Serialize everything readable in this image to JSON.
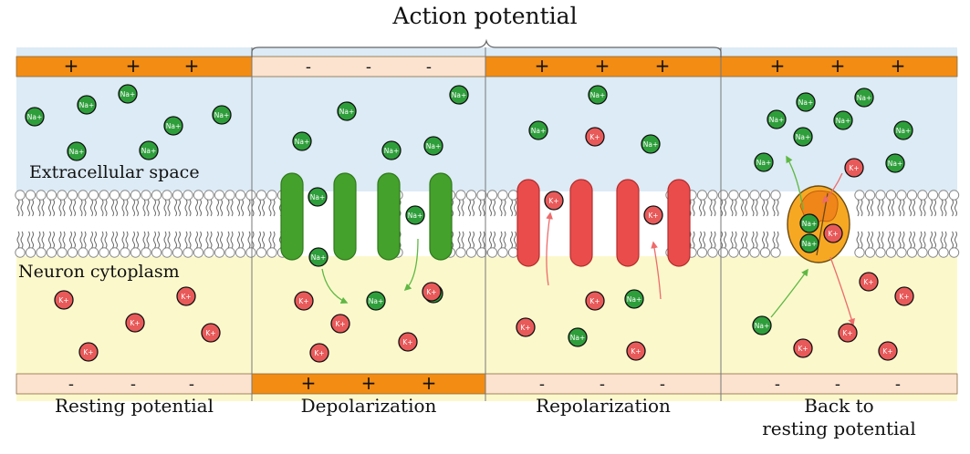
{
  "title": "Action potential",
  "region_labels": {
    "extracellular": "Extracellular space",
    "cytoplasm": "Neuron cytoplasm"
  },
  "ion_labels": {
    "sodium": "Na+",
    "potassium": "K+"
  },
  "colors": {
    "extracellular": "#dcebf5",
    "cytoplasm": "#fbf8cc",
    "bar_positive": "#f28c13",
    "bar_negative": "#fbe3cf",
    "sodium_ion": "#2e9e3b",
    "potassium_ion": "#e85a5a",
    "sodium_channel": "#44a12b",
    "potassium_channel": "#ea4c4c",
    "pump": "#f7a823"
  },
  "panels": [
    {
      "name": "Resting potential",
      "caption": [
        "Resting potential"
      ],
      "top_charge": "+",
      "bottom_charge": "-",
      "channel": "none"
    },
    {
      "name": "Depolarization",
      "caption": [
        "Depolarization"
      ],
      "top_charge": "-",
      "bottom_charge": "+",
      "channel": "sodium"
    },
    {
      "name": "Repolarization",
      "caption": [
        "Repolarization"
      ],
      "top_charge": "+",
      "bottom_charge": "-",
      "channel": "potassium"
    },
    {
      "name": "Back to resting potential",
      "caption": [
        "Back to",
        "resting potential"
      ],
      "top_charge": "+",
      "bottom_charge": "-",
      "channel": "pump"
    }
  ]
}
